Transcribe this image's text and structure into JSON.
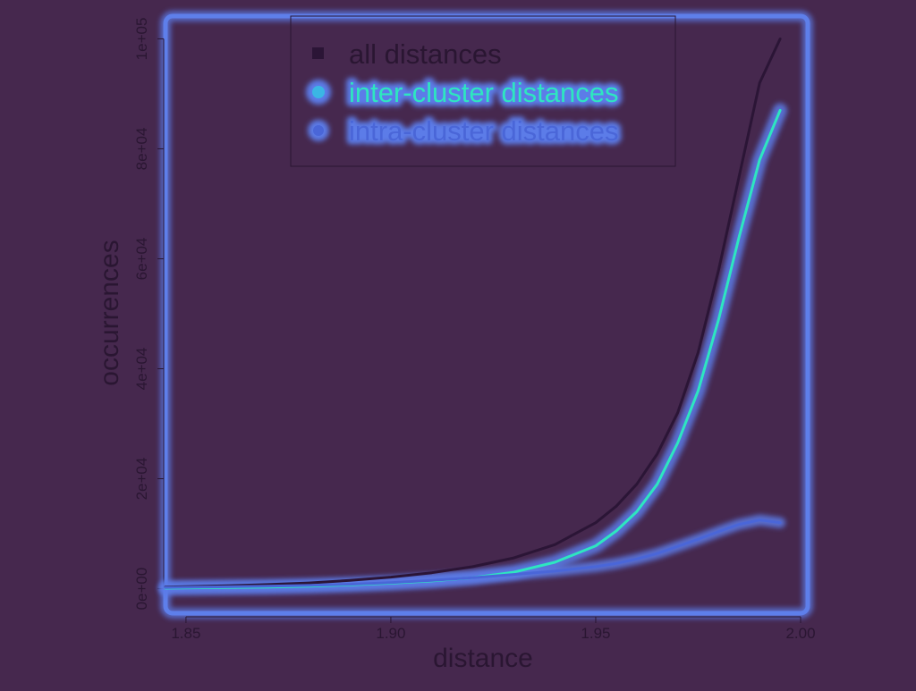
{
  "colors": {
    "background": "#46284e",
    "text": "#2a1632",
    "all_line": "#2b1536",
    "glow": "#5b7be8",
    "inter_core": "#2ee6c0",
    "intra_core": "#4a66d8"
  },
  "chart_data": {
    "type": "line",
    "title": "",
    "xlabel": "distance",
    "ylabel": "occurrences",
    "xlim": [
      1.845,
      2.0
    ],
    "ylim": [
      -3000,
      103000
    ],
    "xticks": [
      1.85,
      1.9,
      1.95,
      2.0
    ],
    "xtick_labels": [
      "1.85",
      "1.90",
      "1.95",
      "2.00"
    ],
    "yticks": [
      0,
      20000,
      40000,
      60000,
      80000,
      100000
    ],
    "ytick_labels": [
      "0e+00",
      "2e+04",
      "4e+04",
      "6e+04",
      "8e+04",
      "1e+05"
    ],
    "legend_position": "top-center",
    "series": [
      {
        "name": "all distances",
        "x": [
          1.845,
          1.86,
          1.87,
          1.88,
          1.89,
          1.9,
          1.91,
          1.92,
          1.93,
          1.94,
          1.95,
          1.955,
          1.96,
          1.965,
          1.97,
          1.975,
          1.98,
          1.985,
          1.99,
          1.995
        ],
        "y": [
          300,
          550,
          750,
          1050,
          1500,
          2100,
          2900,
          4000,
          5600,
          8000,
          12000,
          15000,
          19000,
          24500,
          32000,
          43000,
          58000,
          75000,
          92000,
          100000
        ]
      },
      {
        "name": "inter-cluster distances",
        "x": [
          1.845,
          1.86,
          1.87,
          1.88,
          1.89,
          1.9,
          1.91,
          1.92,
          1.93,
          1.94,
          1.95,
          1.955,
          1.96,
          1.965,
          1.97,
          1.975,
          1.98,
          1.985,
          1.99,
          1.995
        ],
        "y": [
          100,
          200,
          300,
          450,
          700,
          1000,
          1400,
          2000,
          3000,
          4800,
          7800,
          10500,
          14000,
          19000,
          26500,
          36000,
          49000,
          64000,
          78000,
          87000
        ]
      },
      {
        "name": "intra-cluster distances",
        "x": [
          1.845,
          1.86,
          1.87,
          1.88,
          1.89,
          1.9,
          1.91,
          1.92,
          1.93,
          1.94,
          1.95,
          1.955,
          1.96,
          1.965,
          1.97,
          1.975,
          1.98,
          1.985,
          1.99,
          1.995
        ],
        "y": [
          200,
          350,
          450,
          600,
          800,
          1100,
          1500,
          2000,
          2600,
          3200,
          4000,
          4600,
          5400,
          6400,
          7700,
          9000,
          10400,
          11700,
          12500,
          12000
        ]
      }
    ]
  }
}
